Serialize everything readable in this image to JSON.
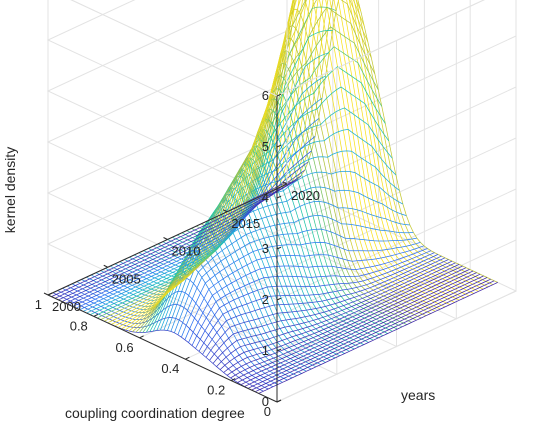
{
  "chart_data": {
    "type": "surface",
    "title": "",
    "xlabel": "coupling coordination degree",
    "ylabel": "years",
    "zlabel": "kernel density",
    "xlim": [
      0,
      1
    ],
    "ylim": [
      2000,
      2020
    ],
    "zlim": [
      0,
      6
    ],
    "x_ticks": [
      "0",
      "0.2",
      "0.4",
      "0.6",
      "0.8",
      "1"
    ],
    "y_ticks": [
      "2000",
      "2005",
      "2010",
      "2015",
      "2020"
    ],
    "z_ticks": [
      "0",
      "1",
      "2",
      "3",
      "4",
      "5",
      "6"
    ],
    "grid": true,
    "colormap": [
      "#3e26a8",
      "#2f6ff5",
      "#1fb0d8",
      "#25c8a0",
      "#b6c23a",
      "#f9e21e"
    ],
    "peak_density_by_year": [
      {
        "year": 2000,
        "peak_x": 0.46,
        "density": 0.4
      },
      {
        "year": 2002,
        "peak_x": 0.49,
        "density": 1.4
      },
      {
        "year": 2004,
        "peak_x": 0.52,
        "density": 1.8
      },
      {
        "year": 2006,
        "peak_x": 0.54,
        "density": 2.1
      },
      {
        "year": 2008,
        "peak_x": 0.57,
        "density": 2.4
      },
      {
        "year": 2010,
        "peak_x": 0.6,
        "density": 2.7
      },
      {
        "year": 2012,
        "peak_x": 0.63,
        "density": 3.4
      },
      {
        "year": 2014,
        "peak_x": 0.67,
        "density": 4.3
      },
      {
        "year": 2016,
        "peak_x": 0.7,
        "density": 5.6
      },
      {
        "year": 2018,
        "peak_x": 0.72,
        "density": 5.5
      },
      {
        "year": 2020,
        "peak_x": 0.74,
        "density": 4.4
      }
    ]
  }
}
